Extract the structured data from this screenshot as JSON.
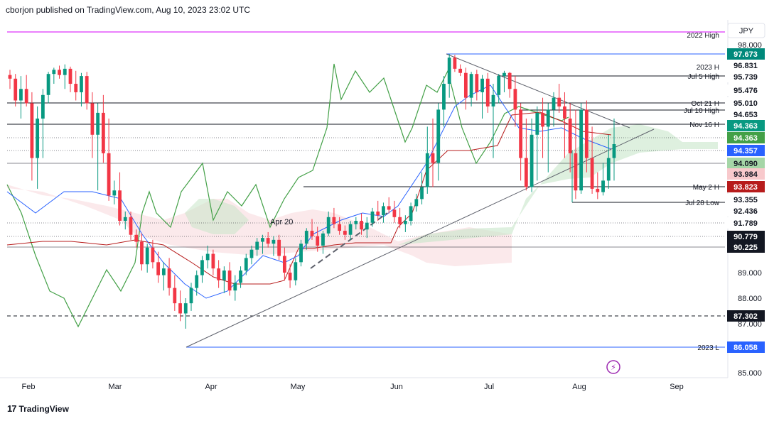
{
  "header": {
    "text": "cborjon published on TradingView.com, Aug 10, 2023 23:02 UTC"
  },
  "footer": {
    "brand": "TradingView",
    "logo": "tradingview-logo-icon"
  },
  "currency_badge": "JPY",
  "colors": {
    "up": "#089981",
    "down": "#f23645",
    "tenkan": "#2962ff",
    "kijun": "#b71c1c",
    "chikou": "#43a047",
    "cloud_bull": "#c8e6c9",
    "cloud_bear": "#f8d7da",
    "magenta": "#d500f9",
    "blue_level": "#2962ff",
    "teal_level": "#00897b"
  },
  "chart_data": {
    "type": "candlestick",
    "symbol_quote": "JPY",
    "ylim": [
      85.0,
      98.5
    ],
    "x_ticks": [
      "Feb",
      "Mar",
      "Apr",
      "May",
      "Jun",
      "Jul",
      "Aug",
      "Sep"
    ],
    "y_ticks": [
      "98.000",
      "89.000",
      "88.000",
      "87.000",
      "85.000"
    ],
    "price_badges": [
      {
        "value": "97.673",
        "bg": "#00897b",
        "fg": "#ffffff"
      },
      {
        "value": "96.831",
        "bg": "#ffffff",
        "fg": "#131722"
      },
      {
        "value": "95.739",
        "bg": "#ffffff",
        "fg": "#131722"
      },
      {
        "value": "95.476",
        "bg": "#ffffff",
        "fg": "#131722"
      },
      {
        "value": "95.010",
        "bg": "#ffffff",
        "fg": "#131722"
      },
      {
        "value": "94.653",
        "bg": "#ffffff",
        "fg": "#131722"
      },
      {
        "value": "94.363",
        "bg": "#089981",
        "fg": "#ffffff"
      },
      {
        "value": "94.363",
        "bg": "#43a047",
        "fg": "#ffffff"
      },
      {
        "value": "94.357",
        "bg": "#2962ff",
        "fg": "#ffffff"
      },
      {
        "value": "94.090",
        "bg": "#a5d6a7",
        "fg": "#131722"
      },
      {
        "value": "93.984",
        "bg": "#f8c9cc",
        "fg": "#131722"
      },
      {
        "value": "93.823",
        "bg": "#b71c1c",
        "fg": "#ffffff"
      },
      {
        "value": "93.355",
        "bg": "#ffffff",
        "fg": "#131722"
      },
      {
        "value": "92.436",
        "bg": "#ffffff",
        "fg": "#131722"
      },
      {
        "value": "91.789",
        "bg": "#ffffff",
        "fg": "#131722"
      },
      {
        "value": "90.779",
        "bg": "#131722",
        "fg": "#ffffff"
      },
      {
        "value": "90.225",
        "bg": "#131722",
        "fg": "#ffffff"
      },
      {
        "value": "87.302",
        "bg": "#131722",
        "fg": "#ffffff"
      },
      {
        "value": "86.058",
        "bg": "#2962ff",
        "fg": "#ffffff"
      }
    ],
    "levels": [
      {
        "label": "2022 High",
        "color": "#d500f9"
      },
      {
        "label": "2023 H",
        "color": "#2962ff"
      },
      {
        "label": "Jul 5 High",
        "color": "#131722"
      },
      {
        "label": "Oct 21 H",
        "color": "#131722"
      },
      {
        "label": "Jul 10 High",
        "color": "#131722"
      },
      {
        "label": "Nov 16 H",
        "color": "#131722"
      },
      {
        "label": "May 2 H",
        "color": "#131722"
      },
      {
        "label": "Jul 28 Low",
        "color": "#131722"
      },
      {
        "label": "2023 L",
        "color": "#2962ff"
      }
    ],
    "annotations": [
      {
        "text": "Apr 20"
      }
    ],
    "candles": [
      [
        95.9,
        96.4,
        95.5,
        95.7
      ],
      [
        95.7,
        96.0,
        94.9,
        95.1
      ],
      [
        95.1,
        95.8,
        94.6,
        95.5
      ],
      [
        95.5,
        95.9,
        94.9,
        95.0
      ],
      [
        95.0,
        95.4,
        93.9,
        94.2
      ],
      [
        94.2,
        94.9,
        93.7,
        94.6
      ],
      [
        94.6,
        95.5,
        94.2,
        95.3
      ],
      [
        95.3,
        96.2,
        95.0,
        96.0
      ],
      [
        96.0,
        96.6,
        95.6,
        96.4
      ],
      [
        96.4,
        96.8,
        95.7,
        95.9
      ],
      [
        95.9,
        96.9,
        95.5,
        96.5
      ],
      [
        96.5,
        96.7,
        95.4,
        95.6
      ],
      [
        95.6,
        96.3,
        95.1,
        95.4
      ],
      [
        95.4,
        96.1,
        94.9,
        95.8
      ],
      [
        95.8,
        96.2,
        94.8,
        95.0
      ],
      [
        95.0,
        95.4,
        94.2,
        94.4
      ],
      [
        94.4,
        95.0,
        93.6,
        94.7
      ],
      [
        94.7,
        95.3,
        94.1,
        94.3
      ],
      [
        94.3,
        94.6,
        93.0,
        93.3
      ],
      [
        93.3,
        93.9,
        92.8,
        93.6
      ],
      [
        93.6,
        94.0,
        91.6,
        91.9
      ],
      [
        91.9,
        92.4,
        91.3,
        92.1
      ],
      [
        92.1,
        92.4,
        90.6,
        90.9
      ],
      [
        90.9,
        91.3,
        90.2,
        90.5
      ],
      [
        90.5,
        91.0,
        89.1,
        89.4
      ],
      [
        89.4,
        90.4,
        89.0,
        90.2
      ],
      [
        90.2,
        90.6,
        89.2,
        89.5
      ],
      [
        89.5,
        90.0,
        88.6,
        88.9
      ],
      [
        88.9,
        89.5,
        88.3,
        89.2
      ],
      [
        89.2,
        89.7,
        88.1,
        88.4
      ],
      [
        88.4,
        88.9,
        87.5,
        87.8
      ],
      [
        87.8,
        88.3,
        87.1,
        87.4
      ],
      [
        87.4,
        88.0,
        86.8,
        87.8
      ],
      [
        87.8,
        88.6,
        87.5,
        88.4
      ],
      [
        88.4,
        89.1,
        88.1,
        88.9
      ],
      [
        88.9,
        89.8,
        88.6,
        89.6
      ],
      [
        89.6,
        90.3,
        89.2,
        89.9
      ],
      [
        89.9,
        90.1,
        88.9,
        89.2
      ],
      [
        89.2,
        89.6,
        88.4,
        88.7
      ],
      [
        88.7,
        89.3,
        88.2,
        89.1
      ],
      [
        89.1,
        89.5,
        88.1,
        88.3
      ],
      [
        88.3,
        88.9,
        87.9,
        88.6
      ],
      [
        88.6,
        89.3,
        88.4,
        89.1
      ],
      [
        89.1,
        89.9,
        88.9,
        89.7
      ],
      [
        89.7,
        90.3,
        89.4,
        90.1
      ],
      [
        90.1,
        90.7,
        89.8,
        90.5
      ],
      [
        90.5,
        90.9,
        89.9,
        90.7
      ],
      [
        90.7,
        91.1,
        90.2,
        90.4
      ],
      [
        90.4,
        90.8,
        89.8,
        90.6
      ],
      [
        90.6,
        90.9,
        89.6,
        89.8
      ],
      [
        89.8,
        90.2,
        88.7,
        89.0
      ],
      [
        89.0,
        89.4,
        88.4,
        88.7
      ],
      [
        88.7,
        89.7,
        88.5,
        89.5
      ],
      [
        89.5,
        90.6,
        89.3,
        90.4
      ],
      [
        90.4,
        91.4,
        90.1,
        91.2
      ],
      [
        91.2,
        92.0,
        90.6,
        90.8
      ],
      [
        90.8,
        91.5,
        90.0,
        90.3
      ],
      [
        90.3,
        91.2,
        89.9,
        91.0
      ],
      [
        91.0,
        92.4,
        90.8,
        92.1
      ],
      [
        92.1,
        92.6,
        91.4,
        91.7
      ],
      [
        91.7,
        92.1,
        90.9,
        91.2
      ],
      [
        91.2,
        91.6,
        90.6,
        90.9
      ],
      [
        90.9,
        91.9,
        90.6,
        91.7
      ],
      [
        91.7,
        92.1,
        91.3,
        91.9
      ],
      [
        91.9,
        92.3,
        90.9,
        91.3
      ],
      [
        91.3,
        92.1,
        90.7,
        91.8
      ],
      [
        91.8,
        92.6,
        91.5,
        92.4
      ],
      [
        92.4,
        93.0,
        91.9,
        92.2
      ],
      [
        92.2,
        92.9,
        91.8,
        92.7
      ],
      [
        92.7,
        93.2,
        92.3,
        92.5
      ],
      [
        92.5,
        93.0,
        91.8,
        92.1
      ],
      [
        92.1,
        92.6,
        91.4,
        91.7
      ],
      [
        91.7,
        92.2,
        91.1,
        91.9
      ],
      [
        91.9,
        92.9,
        91.6,
        92.7
      ],
      [
        92.7,
        93.4,
        92.4,
        93.1
      ],
      [
        93.1,
        94.0,
        92.8,
        93.8
      ],
      [
        93.8,
        94.5,
        93.4,
        94.3
      ],
      [
        94.3,
        94.6,
        93.8,
        94.1
      ],
      [
        94.1,
        95.0,
        93.9,
        94.8
      ],
      [
        94.8,
        95.8,
        94.5,
        95.6
      ],
      [
        95.6,
        97.67,
        95.2,
        97.4
      ],
      [
        97.4,
        97.6,
        96.2,
        96.5
      ],
      [
        96.5,
        96.9,
        95.8,
        96.1
      ],
      [
        96.1,
        96.6,
        94.8,
        95.2
      ],
      [
        95.2,
        96.2,
        94.9,
        96.0
      ],
      [
        96.0,
        96.4,
        95.1,
        95.4
      ],
      [
        95.4,
        95.9,
        94.6,
        95.7
      ],
      [
        95.7,
        96.1,
        94.7,
        94.9
      ],
      [
        94.9,
        95.6,
        94.2,
        95.3
      ],
      [
        95.3,
        96.0,
        95.0,
        95.8
      ],
      [
        95.8,
        96.3,
        95.4,
        96.1
      ],
      [
        96.1,
        96.2,
        95.2,
        95.5
      ],
      [
        95.5,
        95.8,
        94.5,
        94.8
      ],
      [
        94.8,
        95.0,
        93.9,
        94.2
      ],
      [
        94.2,
        94.6,
        93.6,
        93.8
      ],
      [
        93.8,
        94.6,
        93.5,
        94.4
      ],
      [
        94.4,
        94.9,
        93.9,
        94.7
      ],
      [
        94.7,
        95.2,
        94.2,
        94.5
      ],
      [
        94.5,
        95.0,
        94.0,
        94.8
      ],
      [
        94.8,
        95.4,
        94.5,
        95.2
      ],
      [
        95.2,
        95.6,
        94.7,
        94.9
      ],
      [
        94.9,
        95.4,
        94.2,
        94.6
      ],
      [
        94.6,
        95.0,
        94.0,
        94.3
      ],
      [
        94.3,
        94.8,
        93.1,
        93.6
      ],
      [
        93.6,
        95.0,
        93.4,
        94.8
      ],
      [
        94.8,
        95.1,
        94.0,
        94.2
      ],
      [
        94.2,
        94.5,
        93.4,
        93.7
      ],
      [
        93.7,
        94.0,
        93.1,
        93.5
      ],
      [
        93.5,
        94.1,
        93.3,
        93.9
      ],
      [
        93.9,
        94.4,
        93.7,
        94.2
      ],
      [
        94.2,
        94.6,
        93.9,
        94.36
      ]
    ]
  }
}
